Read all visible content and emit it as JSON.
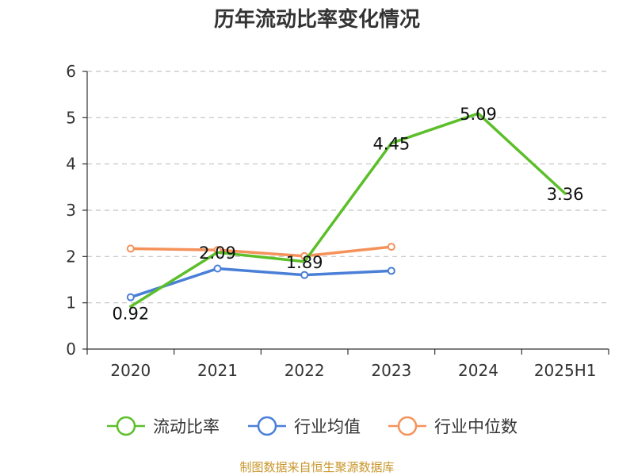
{
  "chart_data": {
    "type": "line",
    "title": "历年流动比率变化情况",
    "categories": [
      "2020",
      "2021",
      "2022",
      "2023",
      "2024",
      "2025H1"
    ],
    "ylim": [
      0,
      6
    ],
    "yticks": [
      "0",
      "1",
      "2",
      "3",
      "4",
      "5",
      "6"
    ],
    "grid": true,
    "legend_position": "bottom",
    "series": [
      {
        "name": "流动比率",
        "color": "#5cbf2a",
        "values": [
          0.92,
          2.09,
          1.89,
          4.45,
          5.09,
          3.36
        ],
        "labels": [
          "0.92",
          "2.09",
          "1.89",
          "4.45",
          "5.09",
          "3.36"
        ]
      },
      {
        "name": "行业均值",
        "color": "#4a7fd8",
        "values": [
          1.12,
          1.74,
          1.6,
          1.69,
          null,
          null
        ]
      },
      {
        "name": "行业中位数",
        "color": "#f5925a",
        "values": [
          2.17,
          2.14,
          2.01,
          2.21,
          null,
          null
        ]
      }
    ]
  },
  "source": {
    "text": "制图数据来自恒生聚源数据库",
    "color": "#c8962a"
  }
}
